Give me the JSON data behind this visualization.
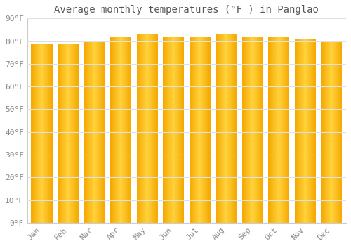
{
  "title": "Average monthly temperatures (°F ) in Panglao",
  "months": [
    "Jan",
    "Feb",
    "Mar",
    "Apr",
    "May",
    "Jun",
    "Jul",
    "Aug",
    "Sep",
    "Oct",
    "Nov",
    "Dec"
  ],
  "values": [
    79,
    79,
    80,
    82,
    83,
    82,
    82,
    83,
    82,
    82,
    81,
    80
  ],
  "bar_color_center": "#FFD040",
  "bar_color_edge": "#F5A800",
  "ylim": [
    0,
    90
  ],
  "yticks": [
    0,
    10,
    20,
    30,
    40,
    50,
    60,
    70,
    80,
    90
  ],
  "ytick_labels": [
    "0°F",
    "10°F",
    "20°F",
    "30°F",
    "40°F",
    "50°F",
    "60°F",
    "70°F",
    "80°F",
    "90°F"
  ],
  "background_color": "#ffffff",
  "plot_bg_color": "#ffffff",
  "grid_color": "#e0e0e0",
  "title_fontsize": 10,
  "tick_fontsize": 8,
  "font_color": "#888888",
  "title_color": "#555555"
}
